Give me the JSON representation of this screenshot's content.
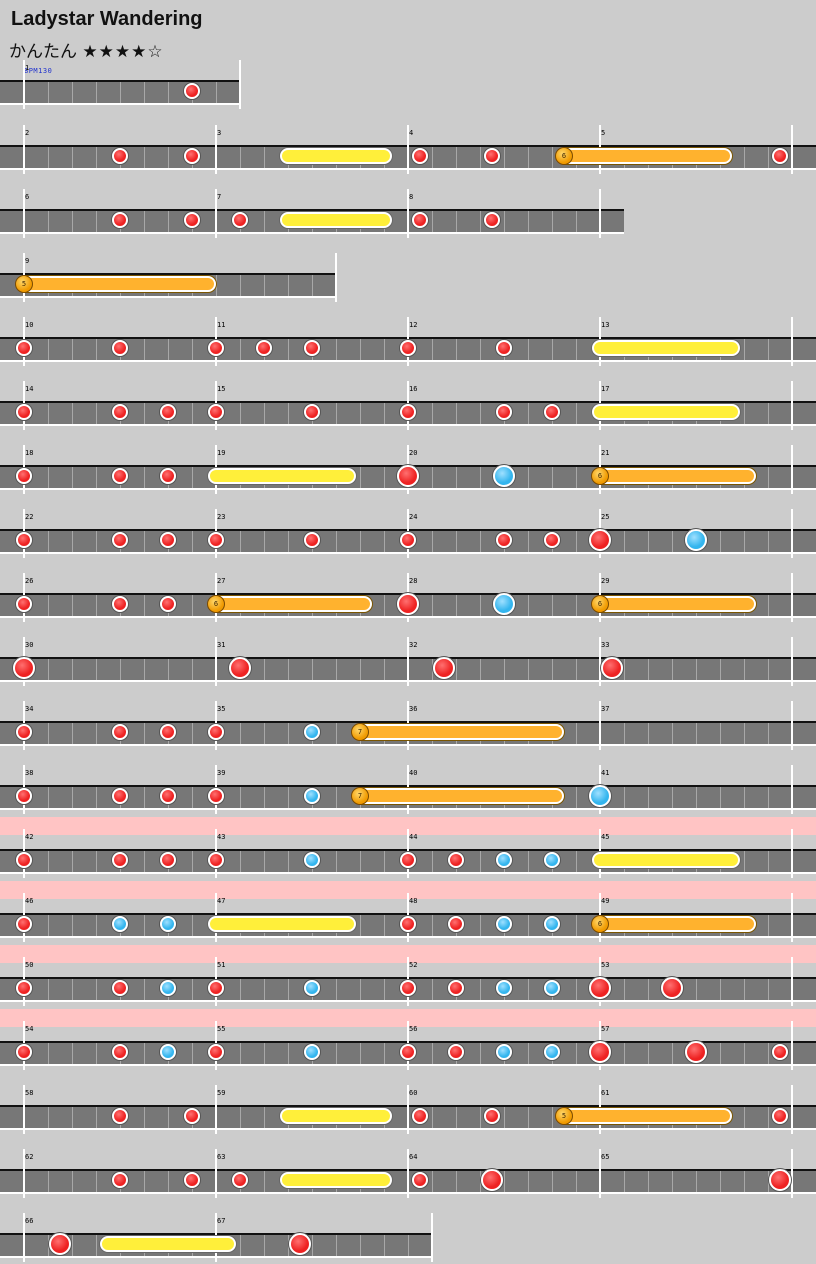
{
  "song": {
    "title": "Ladystar Wandering",
    "difficulty_label": "かんたん",
    "stars": "★★★★☆",
    "bpm_label": "BPM130"
  },
  "colors": {
    "background": "#cccccc",
    "lane": "#777777",
    "don_note": "#ee2222",
    "ka_note": "#33b5ee",
    "drumroll": "#ffef3a",
    "balloon": "#ffb22e",
    "gogo_band": "#ffc4c4"
  },
  "chart_data": {
    "type": "note_chart",
    "measure_divisions": 8,
    "rows": [
      {
        "measures": [
          1
        ],
        "partial_beats": [
          4
        ]
      },
      {
        "measures": [
          2,
          3,
          4,
          5
        ]
      },
      {
        "measures": [
          6,
          7,
          8
        ]
      },
      {
        "measures": [
          9
        ],
        "partial_beats": [
          5.5
        ]
      },
      {
        "measures": [
          10,
          11,
          12,
          13
        ]
      },
      {
        "measures": [
          14,
          15,
          16,
          17
        ]
      },
      {
        "measures": [
          18,
          19,
          20,
          21
        ]
      },
      {
        "measures": [
          22,
          23,
          24,
          25
        ]
      },
      {
        "measures": [
          26,
          27,
          28,
          29
        ]
      },
      {
        "measures": [
          30,
          31,
          32,
          33
        ]
      },
      {
        "measures": [
          34,
          35,
          36,
          37
        ]
      },
      {
        "measures": [
          38,
          39,
          40,
          41
        ]
      },
      {
        "measures": [
          42,
          43,
          44,
          45
        ],
        "gogo": true
      },
      {
        "measures": [
          46,
          47,
          48,
          49
        ],
        "gogo": true
      },
      {
        "measures": [
          50,
          51,
          52,
          53
        ],
        "gogo": true
      },
      {
        "measures": [
          54,
          55,
          56,
          57
        ],
        "gogo": true
      },
      {
        "measures": [
          58,
          59,
          60,
          61
        ]
      },
      {
        "measures": [
          62,
          63,
          64,
          65
        ]
      },
      {
        "measures": [
          66,
          67
        ],
        "partial_beats": [
          9
        ]
      }
    ],
    "notes": [
      {
        "m": 1,
        "b": 7,
        "t": "d"
      },
      {
        "m": 2,
        "b": 4,
        "t": "d"
      },
      {
        "m": 2,
        "b": 7,
        "t": "d"
      },
      {
        "m": 3,
        "b": 3,
        "t": "roll",
        "len": 4
      },
      {
        "m": 4,
        "b": 0.5,
        "t": "d"
      },
      {
        "m": 4,
        "b": 3.5,
        "t": "d"
      },
      {
        "m": 4,
        "b": 6.5,
        "t": "balloon",
        "len": 7,
        "hits": 6
      },
      {
        "m": 5,
        "b": 7.5,
        "t": "d"
      },
      {
        "m": 6,
        "b": 4,
        "t": "d"
      },
      {
        "m": 6,
        "b": 7,
        "t": "d"
      },
      {
        "m": 7,
        "b": 1,
        "t": "d"
      },
      {
        "m": 7,
        "b": 3,
        "t": "roll",
        "len": 4
      },
      {
        "m": 8,
        "b": 0.5,
        "t": "d"
      },
      {
        "m": 8,
        "b": 3.5,
        "t": "d"
      },
      {
        "m": 9,
        "b": 0,
        "t": "balloon",
        "len": 8,
        "hits": 5
      },
      {
        "m": 10,
        "b": 0,
        "t": "d"
      },
      {
        "m": 10,
        "b": 4,
        "t": "d"
      },
      {
        "m": 11,
        "b": 0,
        "t": "d"
      },
      {
        "m": 11,
        "b": 2,
        "t": "d"
      },
      {
        "m": 11,
        "b": 4,
        "t": "d"
      },
      {
        "m": 12,
        "b": 0,
        "t": "d"
      },
      {
        "m": 12,
        "b": 4,
        "t": "d"
      },
      {
        "m": 13,
        "b": 0,
        "t": "roll",
        "len": 5.5
      },
      {
        "m": 14,
        "b": 0,
        "t": "d"
      },
      {
        "m": 14,
        "b": 4,
        "t": "d"
      },
      {
        "m": 14,
        "b": 6,
        "t": "d"
      },
      {
        "m": 15,
        "b": 0,
        "t": "d"
      },
      {
        "m": 15,
        "b": 4,
        "t": "d"
      },
      {
        "m": 16,
        "b": 0,
        "t": "d"
      },
      {
        "m": 16,
        "b": 4,
        "t": "d"
      },
      {
        "m": 16,
        "b": 6,
        "t": "d"
      },
      {
        "m": 17,
        "b": 0,
        "t": "roll",
        "len": 5.5
      },
      {
        "m": 18,
        "b": 0,
        "t": "d"
      },
      {
        "m": 18,
        "b": 4,
        "t": "d"
      },
      {
        "m": 18,
        "b": 6,
        "t": "d"
      },
      {
        "m": 19,
        "b": 0,
        "t": "roll",
        "len": 5.5
      },
      {
        "m": 20,
        "b": 0,
        "t": "D"
      },
      {
        "m": 20,
        "b": 4,
        "t": "K"
      },
      {
        "m": 21,
        "b": 0,
        "t": "balloon",
        "len": 6.5,
        "hits": 6
      },
      {
        "m": 22,
        "b": 0,
        "t": "d"
      },
      {
        "m": 22,
        "b": 4,
        "t": "d"
      },
      {
        "m": 22,
        "b": 6,
        "t": "d"
      },
      {
        "m": 23,
        "b": 0,
        "t": "d"
      },
      {
        "m": 23,
        "b": 4,
        "t": "d"
      },
      {
        "m": 24,
        "b": 0,
        "t": "d"
      },
      {
        "m": 24,
        "b": 4,
        "t": "d"
      },
      {
        "m": 24,
        "b": 6,
        "t": "d"
      },
      {
        "m": 25,
        "b": 0,
        "t": "D"
      },
      {
        "m": 25,
        "b": 4,
        "t": "K"
      },
      {
        "m": 26,
        "b": 0,
        "t": "d"
      },
      {
        "m": 26,
        "b": 4,
        "t": "d"
      },
      {
        "m": 26,
        "b": 6,
        "t": "d"
      },
      {
        "m": 27,
        "b": 0,
        "t": "balloon",
        "len": 6.5,
        "hits": 6
      },
      {
        "m": 28,
        "b": 0,
        "t": "D"
      },
      {
        "m": 28,
        "b": 4,
        "t": "K"
      },
      {
        "m": 29,
        "b": 0,
        "t": "balloon",
        "len": 6.5,
        "hits": 6
      },
      {
        "m": 30,
        "b": 0,
        "t": "D"
      },
      {
        "m": 31,
        "b": 1,
        "t": "D"
      },
      {
        "m": 32,
        "b": 1.5,
        "t": "D"
      },
      {
        "m": 33,
        "b": 0.5,
        "t": "D"
      },
      {
        "m": 34,
        "b": 0,
        "t": "d"
      },
      {
        "m": 34,
        "b": 4,
        "t": "d"
      },
      {
        "m": 34,
        "b": 6,
        "t": "d"
      },
      {
        "m": 35,
        "b": 0,
        "t": "d"
      },
      {
        "m": 35,
        "b": 4,
        "t": "k"
      },
      {
        "m": 35,
        "b": 6,
        "t": "balloon",
        "len": 8.5,
        "hits": 7
      },
      {
        "m": 38,
        "b": 0,
        "t": "d"
      },
      {
        "m": 38,
        "b": 4,
        "t": "d"
      },
      {
        "m": 38,
        "b": 6,
        "t": "d"
      },
      {
        "m": 39,
        "b": 0,
        "t": "d"
      },
      {
        "m": 39,
        "b": 4,
        "t": "k"
      },
      {
        "m": 39,
        "b": 6,
        "t": "balloon",
        "len": 8.5,
        "hits": 7
      },
      {
        "m": 41,
        "b": 0,
        "t": "K"
      },
      {
        "m": 42,
        "b": 0,
        "t": "d"
      },
      {
        "m": 42,
        "b": 4,
        "t": "d"
      },
      {
        "m": 42,
        "b": 6,
        "t": "d"
      },
      {
        "m": 43,
        "b": 0,
        "t": "d"
      },
      {
        "m": 43,
        "b": 4,
        "t": "k"
      },
      {
        "m": 44,
        "b": 0,
        "t": "d"
      },
      {
        "m": 44,
        "b": 2,
        "t": "d"
      },
      {
        "m": 44,
        "b": 4,
        "t": "k"
      },
      {
        "m": 44,
        "b": 6,
        "t": "k"
      },
      {
        "m": 45,
        "b": 0,
        "t": "roll",
        "len": 5.5
      },
      {
        "m": 46,
        "b": 0,
        "t": "d"
      },
      {
        "m": 46,
        "b": 4,
        "t": "k"
      },
      {
        "m": 46,
        "b": 6,
        "t": "k"
      },
      {
        "m": 47,
        "b": 0,
        "t": "roll",
        "len": 5.5
      },
      {
        "m": 48,
        "b": 0,
        "t": "d"
      },
      {
        "m": 48,
        "b": 2,
        "t": "d"
      },
      {
        "m": 48,
        "b": 4,
        "t": "k"
      },
      {
        "m": 48,
        "b": 6,
        "t": "k"
      },
      {
        "m": 49,
        "b": 0,
        "t": "balloon",
        "len": 6.5,
        "hits": 6
      },
      {
        "m": 50,
        "b": 0,
        "t": "d"
      },
      {
        "m": 50,
        "b": 4,
        "t": "d"
      },
      {
        "m": 50,
        "b": 6,
        "t": "k"
      },
      {
        "m": 51,
        "b": 0,
        "t": "d"
      },
      {
        "m": 51,
        "b": 4,
        "t": "k"
      },
      {
        "m": 52,
        "b": 0,
        "t": "d"
      },
      {
        "m": 52,
        "b": 2,
        "t": "d"
      },
      {
        "m": 52,
        "b": 4,
        "t": "k"
      },
      {
        "m": 52,
        "b": 6,
        "t": "k"
      },
      {
        "m": 53,
        "b": 0,
        "t": "D"
      },
      {
        "m": 53,
        "b": 3,
        "t": "D"
      },
      {
        "m": 54,
        "b": 0,
        "t": "d"
      },
      {
        "m": 54,
        "b": 4,
        "t": "d"
      },
      {
        "m": 54,
        "b": 6,
        "t": "k"
      },
      {
        "m": 55,
        "b": 0,
        "t": "d"
      },
      {
        "m": 55,
        "b": 4,
        "t": "k"
      },
      {
        "m": 56,
        "b": 0,
        "t": "d"
      },
      {
        "m": 56,
        "b": 2,
        "t": "d"
      },
      {
        "m": 56,
        "b": 4,
        "t": "k"
      },
      {
        "m": 56,
        "b": 6,
        "t": "k"
      },
      {
        "m": 57,
        "b": 0,
        "t": "D"
      },
      {
        "m": 57,
        "b": 4,
        "t": "D"
      },
      {
        "m": 57,
        "b": 7.5,
        "t": "d"
      },
      {
        "m": 58,
        "b": 4,
        "t": "d"
      },
      {
        "m": 58,
        "b": 7,
        "t": "d"
      },
      {
        "m": 59,
        "b": 3,
        "t": "roll",
        "len": 4
      },
      {
        "m": 60,
        "b": 0.5,
        "t": "d"
      },
      {
        "m": 60,
        "b": 3.5,
        "t": "d"
      },
      {
        "m": 60,
        "b": 6.5,
        "t": "balloon",
        "len": 7,
        "hits": 5
      },
      {
        "m": 61,
        "b": 7.5,
        "t": "d"
      },
      {
        "m": 62,
        "b": 4,
        "t": "d"
      },
      {
        "m": 62,
        "b": 7,
        "t": "d"
      },
      {
        "m": 63,
        "b": 1,
        "t": "d"
      },
      {
        "m": 63,
        "b": 3,
        "t": "roll",
        "len": 4
      },
      {
        "m": 64,
        "b": 0.5,
        "t": "d"
      },
      {
        "m": 64,
        "b": 3.5,
        "t": "D"
      },
      {
        "m": 65,
        "b": 7.5,
        "t": "D"
      },
      {
        "m": 66,
        "b": 1.5,
        "t": "D"
      },
      {
        "m": 66,
        "b": 3.5,
        "t": "roll",
        "len": 5
      },
      {
        "m": 67,
        "b": 3.5,
        "t": "D"
      }
    ]
  }
}
